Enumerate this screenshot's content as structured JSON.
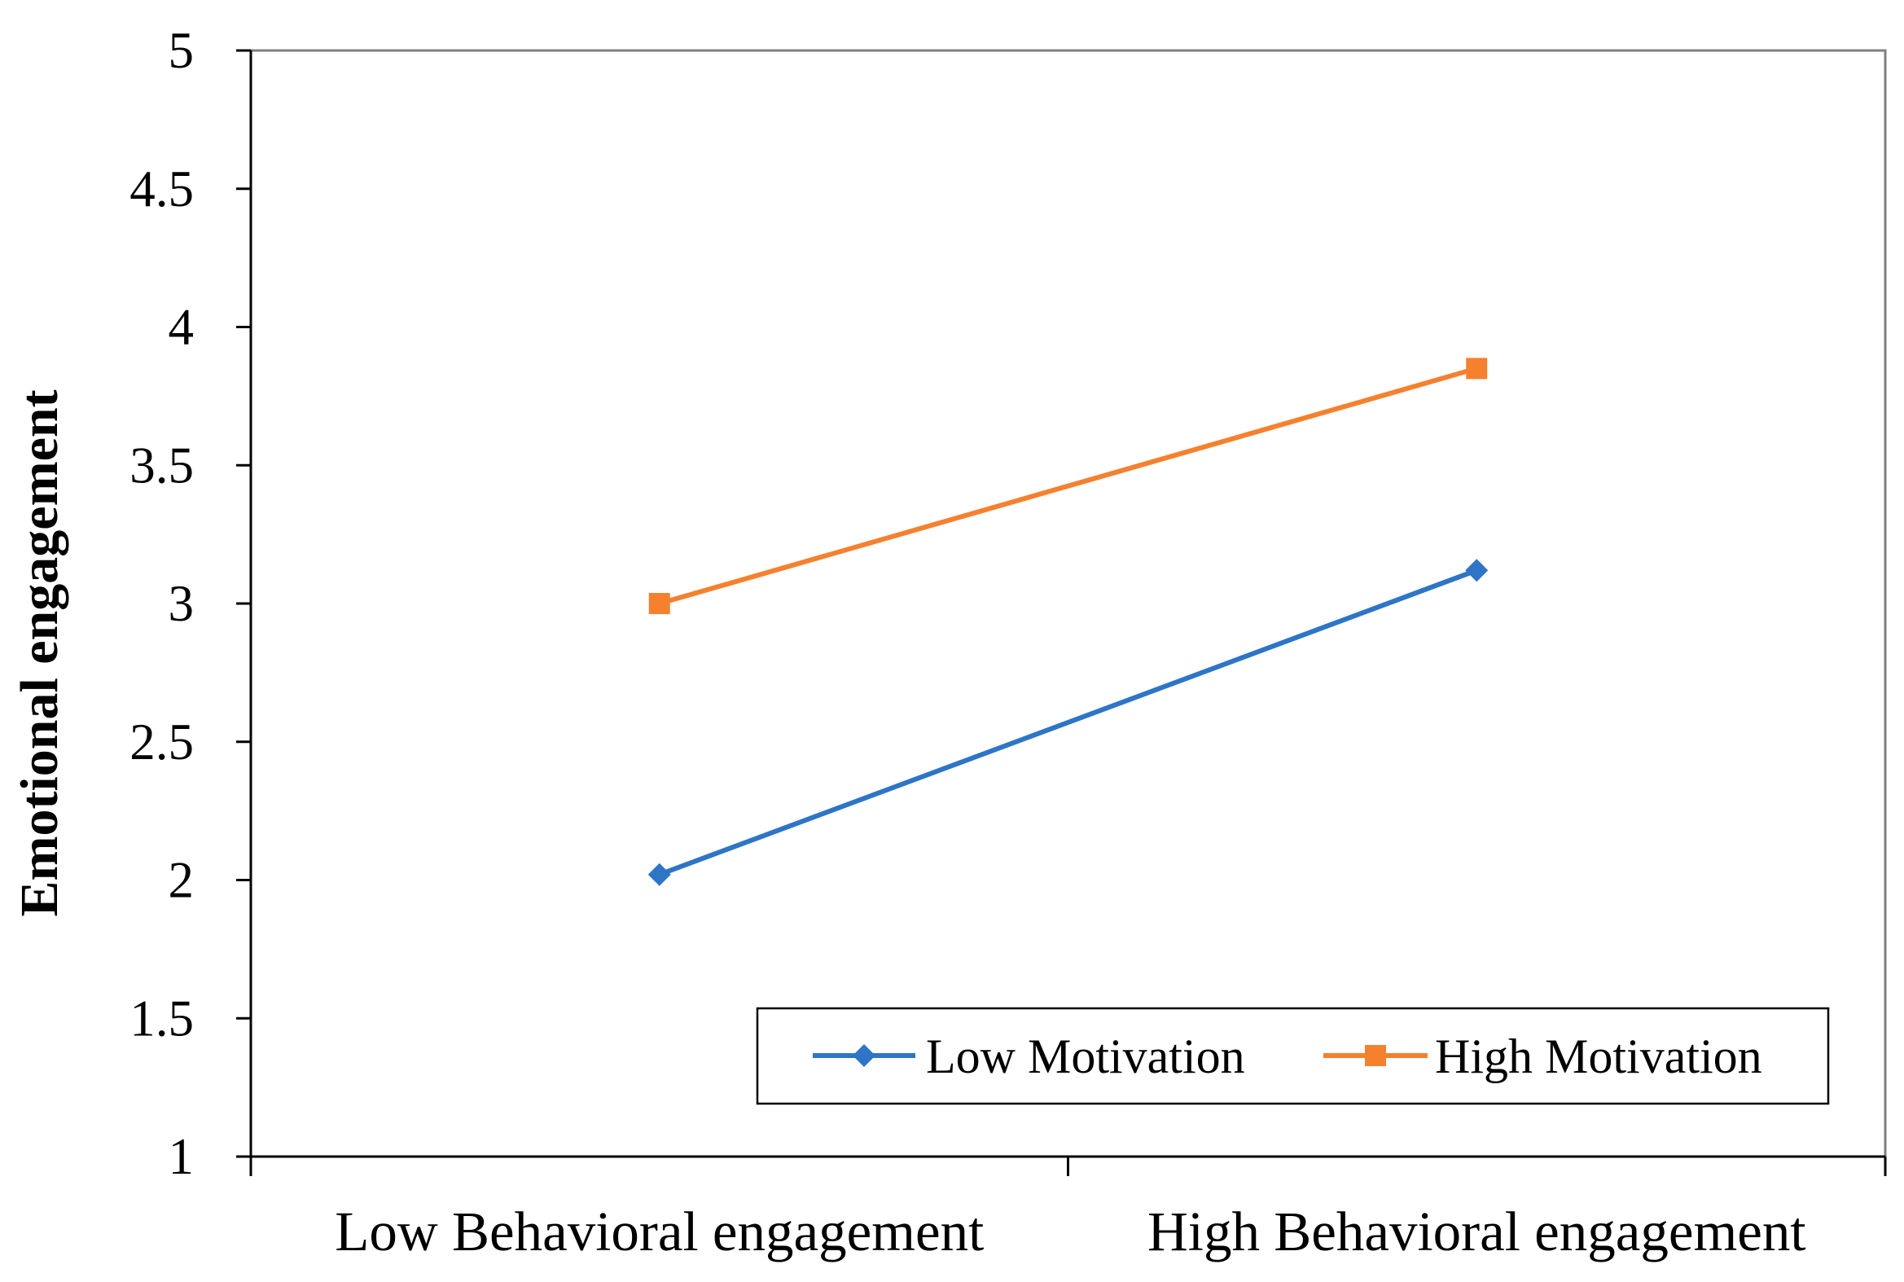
{
  "chart_data": {
    "type": "line",
    "title": "",
    "xlabel": "",
    "ylabel": "Emotional engagement",
    "categories": [
      "Low Behavioral engagement",
      "High Behavioral engagement"
    ],
    "ylim": [
      1,
      5
    ],
    "yticks": [
      "1",
      "1.5",
      "2",
      "2.5",
      "3",
      "3.5",
      "4",
      "4.5",
      "5"
    ],
    "grid": false,
    "legend_position": "bottom-right",
    "series": [
      {
        "name": "Low Motivation",
        "values": [
          2.02,
          3.12
        ],
        "color": "#2E75C6",
        "marker": "diamond"
      },
      {
        "name": "High Motivation",
        "values": [
          3.0,
          3.85
        ],
        "color": "#F5812F",
        "marker": "square"
      }
    ]
  }
}
